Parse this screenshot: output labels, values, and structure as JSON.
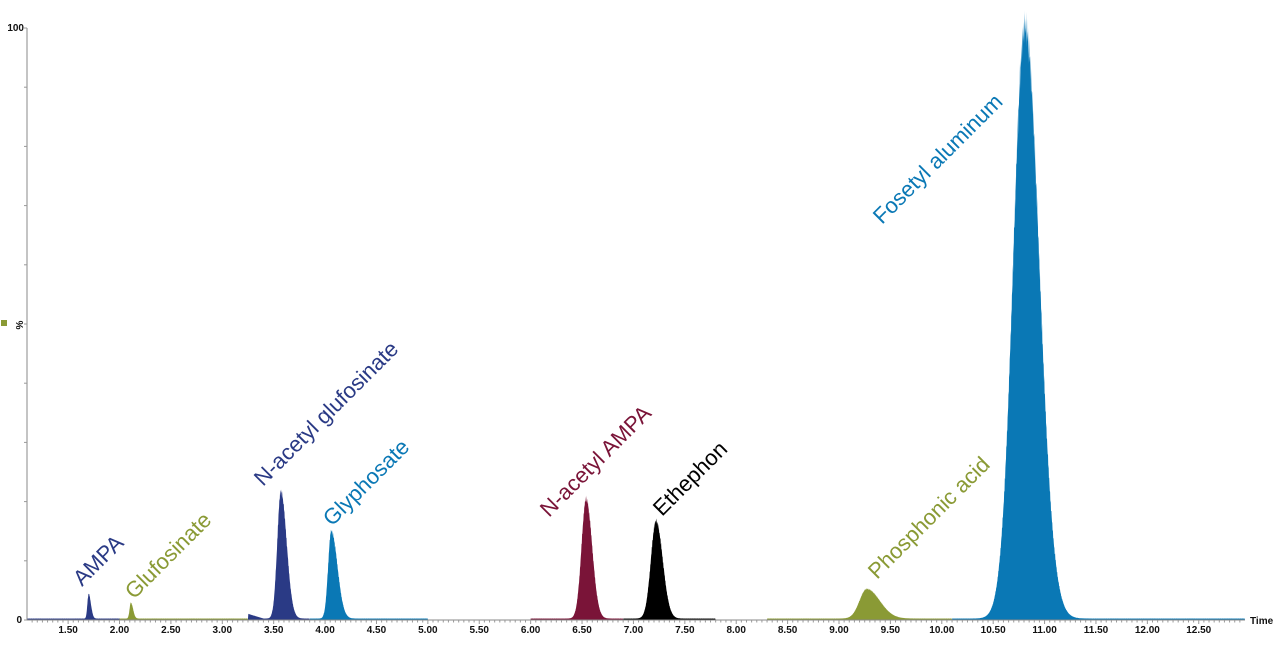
{
  "chart_data": {
    "type": "area",
    "title": "",
    "xlabel": "Time",
    "ylabel": "%",
    "xlim": [
      1.1,
      12.95
    ],
    "ylim": [
      0,
      100
    ],
    "y_tick_labels": [
      "0",
      "100"
    ],
    "x_tick_labels": [
      "1.50",
      "2.00",
      "2.50",
      "3.00",
      "3.50",
      "4.00",
      "4.50",
      "5.00",
      "5.50",
      "6.00",
      "6.50",
      "7.00",
      "7.50",
      "8.00",
      "8.50",
      "9.00",
      "9.50",
      "10.00",
      "10.50",
      "11.00",
      "11.50",
      "12.00",
      "12.50"
    ],
    "legend_marker_color": "#8a9a35",
    "segments": [
      {
        "from": 1.1,
        "to": 2.0,
        "color": "#2a3a85"
      },
      {
        "from": 2.0,
        "to": 3.25,
        "color": "#8a9a35"
      },
      {
        "from": 3.25,
        "to": 3.85,
        "color": "#2a3a85"
      },
      {
        "from": 3.85,
        "to": 5.0,
        "color": "#0a78b5"
      },
      {
        "from": 6.0,
        "to": 6.9,
        "color": "#7a1438"
      },
      {
        "from": 6.9,
        "to": 7.8,
        "color": "#000000"
      },
      {
        "from": 8.3,
        "to": 10.1,
        "color": "#8a9a35"
      },
      {
        "from": 10.1,
        "to": 12.95,
        "color": "#0a78b5"
      }
    ],
    "peaks": [
      {
        "name": "AMPA",
        "rt": 1.7,
        "height": 4.2,
        "color": "#2a3a85"
      },
      {
        "name": "Glufosinate",
        "rt": 2.11,
        "height": 2.7,
        "color": "#8a9a35"
      },
      {
        "name": "N-acetyl glufosinate",
        "rt": 3.57,
        "height": 21.5,
        "color": "#2a3a85"
      },
      {
        "name": "Glyphosate",
        "rt": 4.06,
        "height": 14.8,
        "color": "#0a78b5"
      },
      {
        "name": "N-acetyl AMPA",
        "rt": 6.54,
        "height": 20.2,
        "color": "#7a1438"
      },
      {
        "name": "Ethephon",
        "rt": 7.22,
        "height": 16.5,
        "color": "#000000"
      },
      {
        "name": "Phosphonic acid",
        "rt": 9.27,
        "height": 5.0,
        "color": "#8a9a35"
      },
      {
        "name": "Fosetyl aluminum",
        "rt": 10.81,
        "height": 100,
        "color": "#0a78b5"
      }
    ]
  }
}
